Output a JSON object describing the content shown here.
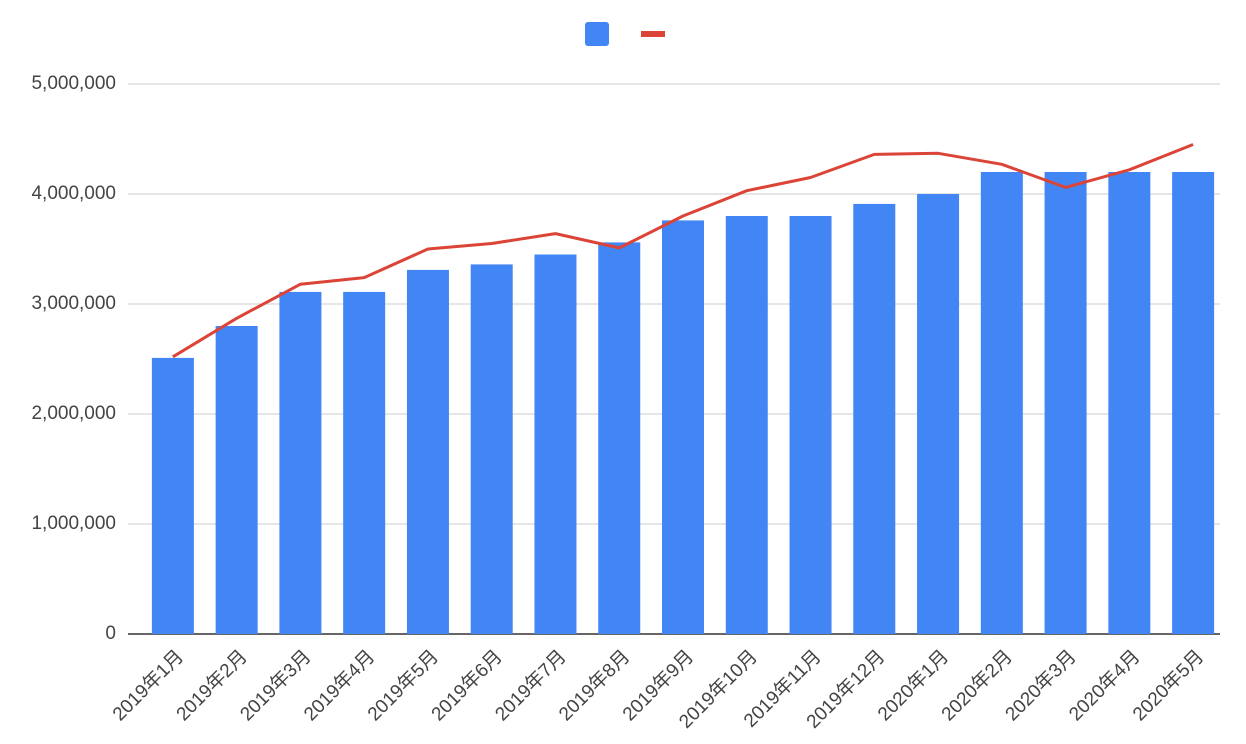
{
  "chart_data": {
    "type": "bar",
    "categories": [
      "2019年1月",
      "2019年2月",
      "2019年3月",
      "2019年4月",
      "2019年5月",
      "2019年6月",
      "2019年7月",
      "2019年8月",
      "2019年9月",
      "2019年10月",
      "2019年11月",
      "2019年12月",
      "2020年1月",
      "2020年2月",
      "2020年3月",
      "2020年4月",
      "2020年5月"
    ],
    "series": [
      {
        "type": "bar",
        "color": "#4285f4",
        "values": [
          2510000,
          2800000,
          3110000,
          3110000,
          3310000,
          3360000,
          3450000,
          3560000,
          3760000,
          3800000,
          3800000,
          3910000,
          4000000,
          4200000,
          4200000,
          4200000,
          4200000
        ]
      },
      {
        "type": "line",
        "color": "#db4437",
        "values": [
          2520000,
          2870000,
          3180000,
          3240000,
          3500000,
          3550000,
          3640000,
          3510000,
          3800000,
          4030000,
          4150000,
          4360000,
          4370000,
          4270000,
          4060000,
          4220000,
          4450000
        ]
      }
    ],
    "ylim": [
      0,
      5000000
    ],
    "yticks": [
      0,
      {
        "value": 1000000,
        "label": "1,000,000"
      },
      {
        "value": 2000000,
        "label": "2,000,000"
      },
      {
        "value": 3000000,
        "label": "3,000,000"
      },
      {
        "value": 4000000,
        "label": "4,000,000"
      },
      {
        "value": 5000000,
        "label": "5,000,000"
      }
    ],
    "grid": true,
    "legend": "top"
  }
}
